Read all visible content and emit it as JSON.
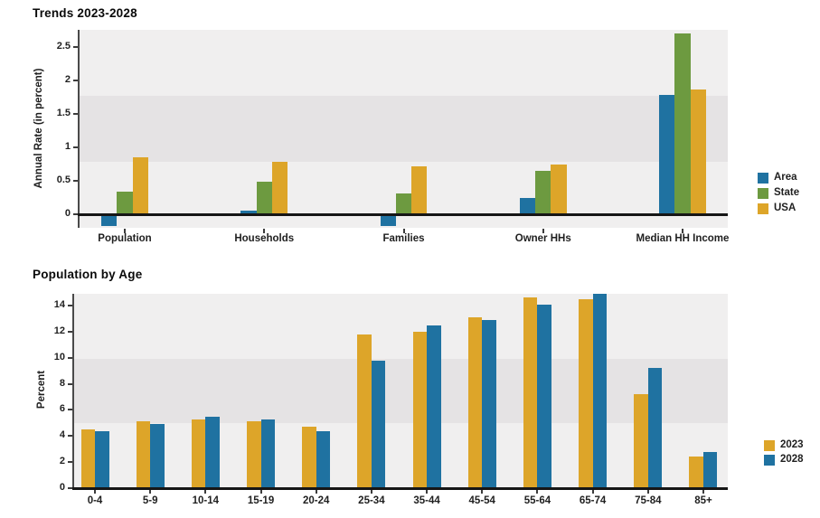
{
  "charts": {
    "trends": {
      "title": "Trends 2023-2028",
      "ylabel": "Annual Rate (in percent)"
    },
    "population_by_age": {
      "title": "Population by Age",
      "ylabel": "Percent"
    }
  },
  "chart_data": [
    {
      "id": "trends-2023-2028",
      "type": "bar",
      "title": "Trends 2023-2028",
      "xlabel": "",
      "ylabel": "Annual Rate (in percent)",
      "categories": [
        "Population",
        "Households",
        "Families",
        "Owner HHs",
        "Median HH Income"
      ],
      "series": [
        {
          "name": "Area",
          "color": "#1F72A1",
          "values": [
            -0.17,
            0.05,
            -0.17,
            0.24,
            1.78
          ]
        },
        {
          "name": "State",
          "color": "#6D9A40",
          "values": [
            0.34,
            0.49,
            0.31,
            0.65,
            2.7
          ]
        },
        {
          "name": "USA",
          "color": "#DDA529",
          "values": [
            0.85,
            0.78,
            0.72,
            0.74,
            1.87
          ]
        }
      ],
      "y_ticks": [
        0,
        0.5,
        1,
        1.5,
        2,
        2.5
      ],
      "y_tick_labels": [
        "0",
        "0.5",
        "1",
        "1.5",
        "2",
        "2.5"
      ],
      "ylim": [
        -0.2,
        2.76
      ],
      "grid": "banded-thirds",
      "legend_position": "right",
      "legend_labels": [
        "Area",
        "State",
        "USA"
      ]
    },
    {
      "id": "population-by-age",
      "type": "bar",
      "title": "Population by Age",
      "xlabel": "",
      "ylabel": "Percent",
      "categories": [
        "0-4",
        "5-9",
        "10-14",
        "15-19",
        "20-24",
        "25-34",
        "35-44",
        "45-54",
        "55-64",
        "65-74",
        "75-84",
        "85+"
      ],
      "series": [
        {
          "name": "2023",
          "color": "#DDA529",
          "values": [
            4.5,
            5.1,
            5.3,
            5.1,
            4.7,
            11.8,
            12.0,
            13.1,
            14.6,
            14.5,
            7.2,
            2.4
          ]
        },
        {
          "name": "2028",
          "color": "#1F72A1",
          "values": [
            4.4,
            4.9,
            5.5,
            5.3,
            4.4,
            9.8,
            12.5,
            12.9,
            14.1,
            14.9,
            9.2,
            2.8
          ]
        }
      ],
      "y_ticks": [
        0,
        2,
        4,
        6,
        8,
        10,
        12,
        14
      ],
      "y_tick_labels": [
        "0",
        "2",
        "4",
        "6",
        "8",
        "10",
        "12",
        "14"
      ],
      "ylim": [
        0,
        14.9
      ],
      "grid": "banded-thirds",
      "legend_position": "right",
      "legend_labels": [
        "2023",
        "2028"
      ]
    }
  ],
  "colors": {
    "band_light": "#F0EFEF",
    "band_dark": "#E5E3E4",
    "axis_line": "#161616",
    "text": "#1F1F1F"
  }
}
